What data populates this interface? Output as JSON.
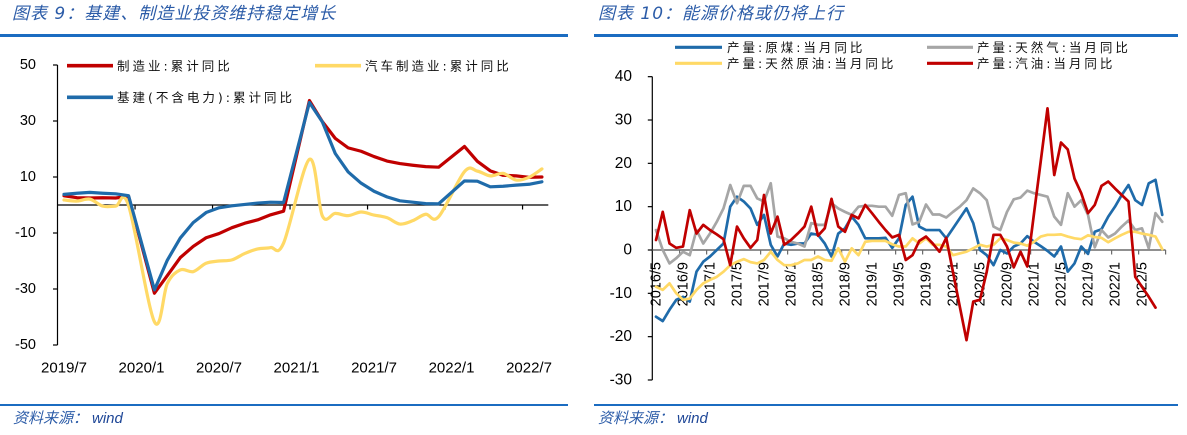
{
  "panels": [
    {
      "title": "图表 9：基建、制造业投资维持稳定增长",
      "source_label": "资料来源：",
      "source_value": "wind"
    },
    {
      "title": "图表 10：能源价格或仍将上行",
      "source_label": "资料来源：",
      "source_value": "wind"
    }
  ],
  "chart_data": [
    {
      "type": "line",
      "title": "图表 9：基建、制造业投资维持稳定增长",
      "xlabel": "",
      "ylabel": "",
      "ylim": [
        -50,
        50
      ],
      "y_ticks": [
        50,
        30,
        10,
        -10,
        -30,
        -50
      ],
      "grid": false,
      "legend_position": "top-left",
      "x": [
        "2019/7",
        "2019/8",
        "2019/9",
        "2019/10",
        "2019/11",
        "2019/12",
        "2020/1",
        "2020/2",
        "2020/3",
        "2020/4",
        "2020/5",
        "2020/6",
        "2020/7",
        "2020/8",
        "2020/9",
        "2020/10",
        "2020/11",
        "2020/12",
        "2021/1",
        "2021/2",
        "2021/3",
        "2021/4",
        "2021/5",
        "2021/6",
        "2021/7",
        "2021/8",
        "2021/9",
        "2021/10",
        "2021/11",
        "2021/12",
        "2022/1",
        "2022/2",
        "2022/3",
        "2022/4",
        "2022/5",
        "2022/6",
        "2022/7",
        "2022/8"
      ],
      "x_tick_labels": [
        "2019/7",
        "2020/1",
        "2020/7",
        "2021/1",
        "2021/7",
        "2022/1",
        "2022/7"
      ],
      "series": [
        {
          "name": "制造业:累计同比",
          "color": "#C00000",
          "values": [
            3.3,
            2.6,
            2.5,
            2.6,
            2.5,
            3.1,
            null,
            -31.5,
            -25.2,
            -18.8,
            -14.8,
            -11.7,
            -10.2,
            -8.1,
            -6.5,
            -5.3,
            -3.5,
            -2.2,
            null,
            37.3,
            29.8,
            23.8,
            20.4,
            19.2,
            17.3,
            15.7,
            14.8,
            14.2,
            13.7,
            13.5,
            null,
            20.9,
            15.6,
            12.2,
            10.6,
            10.4,
            9.9,
            10.0
          ]
        },
        {
          "name": "汽车制造业:累计同比",
          "color": "#FFD966",
          "smooth": true,
          "values": [
            1.8,
            1.4,
            2.1,
            -0.4,
            -0.4,
            -0.2,
            null,
            -41.7,
            -28.0,
            -23.2,
            -23.8,
            -20.8,
            -20.0,
            -19.6,
            -17.3,
            -15.7,
            -15.2,
            -13.6,
            null,
            16.3,
            -3.9,
            -3.0,
            -3.8,
            -2.5,
            -3.6,
            -4.5,
            -6.8,
            -5.6,
            -3.3,
            -4.2,
            null,
            11.9,
            12.1,
            10.4,
            11.3,
            8.9,
            9.9,
            12.9
          ]
        },
        {
          "name": "基建(不含电力):累计同比",
          "color": "#1F6BAA",
          "values": [
            3.8,
            4.2,
            4.5,
            4.2,
            4.0,
            3.3,
            null,
            -30.3,
            -19.7,
            -11.8,
            -6.3,
            -2.7,
            -1.0,
            -0.3,
            0.2,
            0.7,
            1.0,
            0.9,
            null,
            36.6,
            29.7,
            18.4,
            11.8,
            7.8,
            4.9,
            2.9,
            1.5,
            1.0,
            0.5,
            0.4,
            null,
            8.6,
            8.5,
            6.5,
            6.7,
            7.1,
            7.4,
            8.3
          ]
        }
      ]
    },
    {
      "type": "line",
      "title": "图表 10：能源价格或仍将上行",
      "xlabel": "",
      "ylabel": "",
      "ylim": [
        -30,
        40
      ],
      "y_ticks": [
        40,
        30,
        20,
        10,
        0,
        -10,
        -20,
        -30
      ],
      "grid": false,
      "legend_position": "top",
      "x": [
        "2016/5",
        "2016/6",
        "2016/7",
        "2016/8",
        "2016/9",
        "2016/10",
        "2016/11",
        "2016/12",
        "2017/1",
        "2017/2",
        "2017/3",
        "2017/4",
        "2017/5",
        "2017/6",
        "2017/7",
        "2017/8",
        "2017/9",
        "2017/10",
        "2017/11",
        "2017/12",
        "2018/1",
        "2018/2",
        "2018/3",
        "2018/4",
        "2018/5",
        "2018/6",
        "2018/7",
        "2018/8",
        "2018/9",
        "2018/10",
        "2018/11",
        "2018/12",
        "2019/1",
        "2019/2",
        "2019/3",
        "2019/4",
        "2019/5",
        "2019/6",
        "2019/7",
        "2019/8",
        "2019/9",
        "2019/10",
        "2019/11",
        "2019/12",
        "2020/1",
        "2020/2",
        "2020/3",
        "2020/4",
        "2020/5",
        "2020/6",
        "2020/7",
        "2020/8",
        "2020/9",
        "2020/10",
        "2020/11",
        "2020/12",
        "2021/1",
        "2021/2",
        "2021/3",
        "2021/4",
        "2021/5",
        "2021/6",
        "2021/7",
        "2021/8",
        "2021/9",
        "2021/10",
        "2021/11",
        "2021/12",
        "2022/1",
        "2022/2",
        "2022/3",
        "2022/4",
        "2022/5",
        "2022/6",
        "2022/7",
        "2022/8"
      ],
      "x_tick_labels": [
        "2016/5",
        "2016/9",
        "2017/1",
        "2017/5",
        "2017/9",
        "2018/1",
        "2018/5",
        "2018/9",
        "2019/1",
        "2019/5",
        "2019/9",
        "2020/1",
        "2020/5",
        "2020/9",
        "2021/1",
        "2021/5",
        "2021/9",
        "2022/1",
        "2022/5"
      ],
      "series": [
        {
          "name": "产量:原煤:当月同比",
          "color": "#1F6BAA",
          "values": [
            -15.4,
            -16.4,
            -13.8,
            -11.5,
            -10.8,
            -11.9,
            -5.0,
            -2.7,
            -1.5,
            0.0,
            1.5,
            10.0,
            12.3,
            11.2,
            9.6,
            5.8,
            8.1,
            1.2,
            -1.5,
            1.5,
            1.2,
            1.5,
            1.5,
            3.8,
            3.5,
            1.5,
            -1.5,
            3.8,
            5.0,
            7.7,
            5.8,
            2.7,
            2.7,
            2.7,
            2.8,
            0.5,
            2.7,
            10.4,
            12.3,
            5.4,
            4.6,
            4.6,
            4.6,
            2.7,
            5.0,
            7.3,
            9.6,
            6.2,
            0.0,
            -1.2,
            -3.5,
            0.0,
            -0.8,
            0.8,
            1.5,
            3.2,
            1.9,
            0.9,
            -0.2,
            -1.5,
            0.8,
            -5.0,
            -3.1,
            0.8,
            -0.9,
            4.2,
            4.8,
            7.7,
            10.0,
            12.7,
            15.0,
            11.5,
            10.4,
            15.4,
            16.2,
            8.1
          ]
        },
        {
          "name": "产量:天然气:当月同比",
          "color": "#A6A6A6",
          "values": [
            4.6,
            0.0,
            -3.1,
            -1.9,
            -0.4,
            -1.2,
            4.6,
            1.5,
            3.8,
            6.5,
            9.6,
            15.0,
            10.8,
            14.8,
            14.8,
            11.9,
            11.2,
            15.4,
            3.1,
            2.7,
            1.9,
            1.5,
            0.8,
            6.2,
            5.8,
            5.8,
            10.8,
            9.6,
            8.8,
            8.1,
            10.0,
            10.2,
            10.2,
            10.0,
            10.0,
            7.9,
            12.7,
            13.1,
            5.9,
            6.5,
            10.5,
            8.2,
            8.2,
            7.5,
            8.8,
            10.0,
            11.5,
            14.2,
            13.1,
            11.5,
            5.4,
            4.6,
            8.8,
            11.7,
            12.1,
            13.7,
            13.1,
            12.7,
            12.3,
            7.7,
            5.8,
            13.1,
            10.0,
            11.5,
            8.1,
            0.6,
            4.6,
            2.9,
            3.8,
            5.4,
            6.8,
            4.6,
            5.0,
            0.4,
            8.5,
            6.5
          ]
        },
        {
          "name": "产量:天然原油:当月同比",
          "color": "#FFD966",
          "values": [
            -8.5,
            -9.2,
            -7.7,
            -10.0,
            -11.5,
            -11.2,
            -9.2,
            -7.7,
            -6.9,
            -6.2,
            -5.0,
            -3.5,
            -2.7,
            -2.1,
            -2.8,
            -3.1,
            -2.3,
            -0.4,
            -2.3,
            -3.5,
            -3.5,
            -3.1,
            -2.3,
            -2.3,
            -1.5,
            -2.3,
            -2.5,
            0.4,
            -2.7,
            0.4,
            -1.2,
            1.9,
            2.1,
            2.1,
            2.1,
            1.3,
            0.8,
            0.8,
            2.7,
            1.5,
            2.7,
            1.2,
            1.2,
            0.8,
            -1.2,
            -0.8,
            -0.4,
            0.4,
            1.2,
            0.8,
            1.2,
            2.7,
            2.3,
            1.7,
            1.5,
            1.0,
            1.9,
            3.1,
            3.5,
            3.5,
            3.6,
            3.1,
            2.7,
            2.5,
            3.4,
            3.0,
            2.8,
            1.8,
            2.7,
            3.5,
            4.2,
            4.2,
            3.8,
            3.5,
            3.1,
            0.2
          ]
        },
        {
          "name": "产量:汽油:当月同比",
          "color": "#C00000",
          "values": [
            2.3,
            8.8,
            1.5,
            0.5,
            0.8,
            9.2,
            3.8,
            5.8,
            4.6,
            3.6,
            2.5,
            -3.5,
            5.4,
            2.7,
            0.5,
            2.3,
            12.7,
            3.8,
            7.7,
            1.2,
            2.3,
            3.8,
            5.4,
            10.0,
            3.3,
            5.0,
            11.8,
            5.4,
            4.2,
            8.1,
            7.3,
            10.4,
            8.5,
            6.5,
            4.6,
            2.9,
            3.5,
            -2.3,
            -1.2,
            2.1,
            3.1,
            1.5,
            -0.4,
            2.8,
            -5.1,
            -13.0,
            -20.8,
            -11.9,
            -11.5,
            -5.0,
            3.5,
            3.5,
            0.8,
            -4.0,
            -0.4,
            -3.8,
            8.4,
            20.5,
            32.7,
            17.3,
            24.8,
            23.2,
            16.5,
            13.1,
            8.5,
            10.4,
            14.8,
            15.8,
            14.2,
            12.7,
            11.2,
            -6.2,
            -8.5,
            -10.8,
            -13.3,
            null
          ]
        }
      ]
    }
  ]
}
